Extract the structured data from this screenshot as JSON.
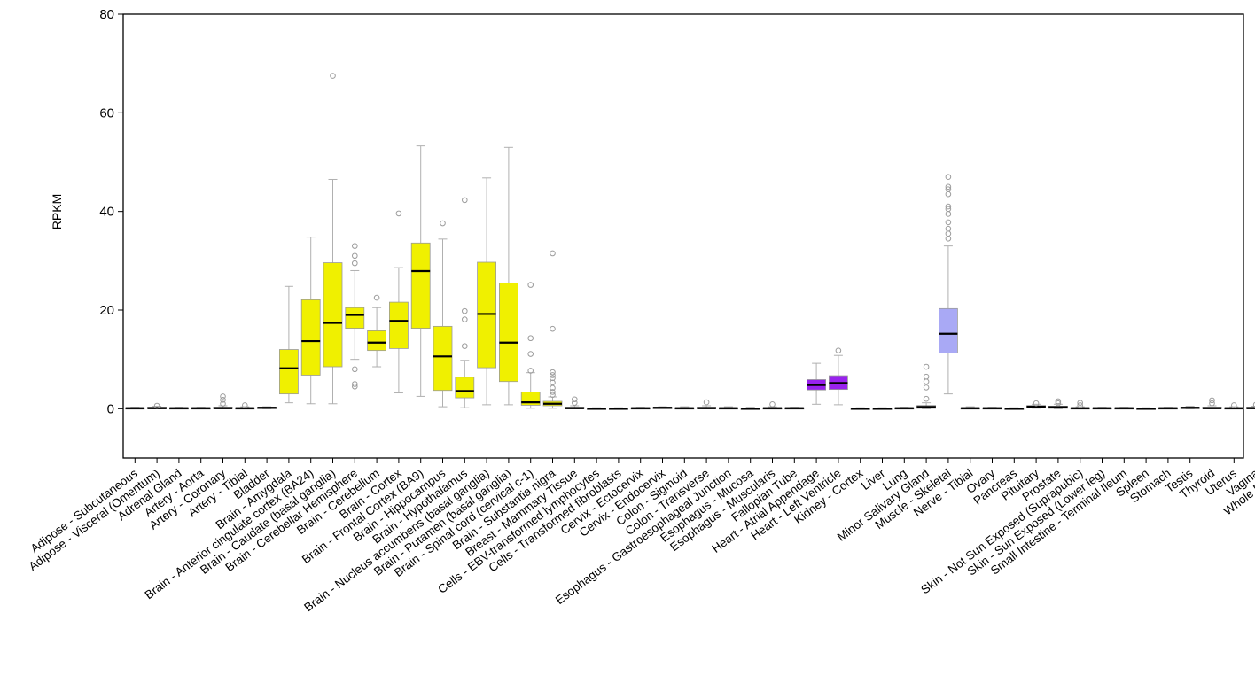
{
  "chart_data": {
    "type": "box",
    "title": "",
    "xlabel": "",
    "ylabel": "RPKM",
    "ylim": [
      -10,
      80
    ],
    "yticks": [
      0,
      20,
      40,
      60,
      80
    ],
    "grid": false,
    "legend": "none",
    "colors": {
      "yellow": "#f0f000",
      "purple": "#9922ee",
      "lavender": "#a9a9f5",
      "gray": "#bdbdbd",
      "black": "#000000",
      "whisker": "#b0b0b0"
    },
    "categories": [
      {
        "label": "Adipose - Subcutaneous",
        "q1": 0,
        "median": 0.1,
        "q3": 0.2,
        "wlow": 0,
        "whigh": 0.3,
        "outliers": [],
        "color": "gray"
      },
      {
        "label": "Adipose - Visceral (Omentum)",
        "q1": 0,
        "median": 0.1,
        "q3": 0.3,
        "wlow": 0,
        "whigh": 0.5,
        "outliers": [
          0.6
        ],
        "color": "gray"
      },
      {
        "label": "Adrenal Gland",
        "q1": 0,
        "median": 0.1,
        "q3": 0.2,
        "wlow": 0,
        "whigh": 0.3,
        "outliers": [],
        "color": "gray"
      },
      {
        "label": "Artery - Aorta",
        "q1": 0,
        "median": 0.1,
        "q3": 0.2,
        "wlow": 0,
        "whigh": 0.3,
        "outliers": [],
        "color": "gray"
      },
      {
        "label": "Artery - Coronary",
        "q1": 0,
        "median": 0.1,
        "q3": 0.3,
        "wlow": 0,
        "whigh": 0.6,
        "outliers": [
          1.0,
          1.8,
          2.5
        ],
        "color": "gray"
      },
      {
        "label": "Artery - Tibial",
        "q1": 0,
        "median": 0.1,
        "q3": 0.2,
        "wlow": 0,
        "whigh": 0.4,
        "outliers": [
          0.7
        ],
        "color": "gray"
      },
      {
        "label": "Bladder",
        "q1": 0.1,
        "median": 0.2,
        "q3": 0.3,
        "wlow": 0,
        "whigh": 0.4,
        "outliers": [],
        "color": "gray"
      },
      {
        "label": "Brain - Amygdala",
        "q1": 3,
        "median": 8.2,
        "q3": 12,
        "wlow": 1.2,
        "whigh": 24.8,
        "outliers": [],
        "color": "yellow"
      },
      {
        "label": "Brain - Anterior cingulate cortex (BA24)",
        "q1": 6.8,
        "median": 13.7,
        "q3": 22.1,
        "wlow": 1.0,
        "whigh": 34.8,
        "outliers": [],
        "color": "yellow"
      },
      {
        "label": "Brain - Caudate (basal ganglia)",
        "q1": 8.5,
        "median": 17.4,
        "q3": 29.6,
        "wlow": 1.0,
        "whigh": 46.5,
        "outliers": [
          67.5
        ],
        "color": "yellow"
      },
      {
        "label": "Brain - Cerebellar Hemisphere",
        "q1": 16.3,
        "median": 19.0,
        "q3": 20.5,
        "wlow": 10,
        "whigh": 28,
        "outliers": [
          33.0,
          31.0,
          29.5,
          8.0,
          5.0,
          4.5
        ],
        "color": "yellow"
      },
      {
        "label": "Brain - Cerebellum",
        "q1": 11.8,
        "median": 13.4,
        "q3": 15.8,
        "wlow": 8.5,
        "whigh": 20.5,
        "outliers": [
          22.5
        ],
        "color": "yellow"
      },
      {
        "label": "Brain - Cortex",
        "q1": 12.2,
        "median": 17.8,
        "q3": 21.6,
        "wlow": 3.2,
        "whigh": 28.6,
        "outliers": [
          39.6
        ],
        "color": "yellow"
      },
      {
        "label": "Brain - Frontal Cortex (BA9)",
        "q1": 16.3,
        "median": 27.9,
        "q3": 33.6,
        "wlow": 2.5,
        "whigh": 53.3,
        "outliers": [],
        "color": "yellow"
      },
      {
        "label": "Brain - Hippocampus",
        "q1": 3.7,
        "median": 10.6,
        "q3": 16.7,
        "wlow": 0.4,
        "whigh": 34.4,
        "outliers": [
          37.6
        ],
        "color": "yellow"
      },
      {
        "label": "Brain - Hypothalamus",
        "q1": 2.2,
        "median": 3.6,
        "q3": 6.4,
        "wlow": 0.2,
        "whigh": 9.8,
        "outliers": [
          42.3,
          19.8,
          18.1,
          12.7
        ],
        "color": "yellow"
      },
      {
        "label": "Brain - Nucleus accumbens (basal ganglia)",
        "q1": 8.3,
        "median": 19.2,
        "q3": 29.7,
        "wlow": 0.8,
        "whigh": 46.8,
        "outliers": [],
        "color": "yellow"
      },
      {
        "label": "Brain - Putamen (basal ganglia)",
        "q1": 5.5,
        "median": 13.4,
        "q3": 25.5,
        "wlow": 0.8,
        "whigh": 53.0,
        "outliers": [],
        "color": "yellow"
      },
      {
        "label": "Brain - Spinal cord (cervical c-1)",
        "q1": 0.7,
        "median": 1.3,
        "q3": 3.4,
        "wlow": 0.1,
        "whigh": 7.3,
        "outliers": [
          25.1,
          14.3,
          11.1,
          7.7
        ],
        "color": "yellow"
      },
      {
        "label": "Brain - Substantia nigra",
        "q1": 0.6,
        "median": 1.0,
        "q3": 1.5,
        "wlow": 0.1,
        "whigh": 2.4,
        "outliers": [
          31.5,
          16.2,
          7.4,
          6.8,
          6.2,
          5.3,
          4.2,
          3.4,
          2.8
        ],
        "color": "yellow"
      },
      {
        "label": "Breast - Mammary Tissue",
        "q1": 0,
        "median": 0.1,
        "q3": 0.3,
        "wlow": 0,
        "whigh": 0.6,
        "outliers": [
          1.2,
          1.9
        ],
        "color": "gray"
      },
      {
        "label": "Cells - EBV-transformed lymphocytes",
        "q1": 0,
        "median": 0.05,
        "q3": 0.1,
        "wlow": 0,
        "whigh": 0.2,
        "outliers": [],
        "color": "gray"
      },
      {
        "label": "Cells - Transformed fibroblasts",
        "q1": 0,
        "median": 0.05,
        "q3": 0.1,
        "wlow": 0,
        "whigh": 0.2,
        "outliers": [],
        "color": "gray"
      },
      {
        "label": "Cervix - Ectocervix",
        "q1": 0,
        "median": 0.1,
        "q3": 0.2,
        "wlow": 0,
        "whigh": 0.3,
        "outliers": [],
        "color": "gray"
      },
      {
        "label": "Cervix - Endocervix",
        "q1": 0.1,
        "median": 0.2,
        "q3": 0.3,
        "wlow": 0.1,
        "whigh": 0.4,
        "outliers": [],
        "color": "gray"
      },
      {
        "label": "Colon - Sigmoid",
        "q1": 0,
        "median": 0.1,
        "q3": 0.2,
        "wlow": 0,
        "whigh": 0.4,
        "outliers": [],
        "color": "gray"
      },
      {
        "label": "Colon - Transverse",
        "q1": 0,
        "median": 0.1,
        "q3": 0.3,
        "wlow": 0,
        "whigh": 0.6,
        "outliers": [
          1.3
        ],
        "color": "gray"
      },
      {
        "label": "Esophagus - Gastroesophageal Junction",
        "q1": 0,
        "median": 0.1,
        "q3": 0.2,
        "wlow": 0,
        "whigh": 0.4,
        "outliers": [],
        "color": "gray"
      },
      {
        "label": "Esophagus - Mucosa",
        "q1": 0,
        "median": 0.05,
        "q3": 0.1,
        "wlow": 0,
        "whigh": 0.3,
        "outliers": [],
        "color": "gray"
      },
      {
        "label": "Esophagus - Muscularis",
        "q1": 0,
        "median": 0.1,
        "q3": 0.2,
        "wlow": 0,
        "whigh": 0.4,
        "outliers": [
          0.9
        ],
        "color": "gray"
      },
      {
        "label": "Fallopian Tube",
        "q1": 0,
        "median": 0.1,
        "q3": 0.2,
        "wlow": 0,
        "whigh": 0.3,
        "outliers": [],
        "color": "gray"
      },
      {
        "label": "Heart - Atrial Appendage",
        "q1": 3.8,
        "median": 4.8,
        "q3": 5.9,
        "wlow": 0.9,
        "whigh": 9.2,
        "outliers": [],
        "color": "purple"
      },
      {
        "label": "Heart - Left Ventricle",
        "q1": 3.9,
        "median": 5.2,
        "q3": 6.7,
        "wlow": 0.8,
        "whigh": 10.8,
        "outliers": [
          11.8
        ],
        "color": "purple"
      },
      {
        "label": "Kidney - Cortex",
        "q1": 0,
        "median": 0.05,
        "q3": 0.1,
        "wlow": 0,
        "whigh": 0.2,
        "outliers": [],
        "color": "gray"
      },
      {
        "label": "Liver",
        "q1": 0,
        "median": 0.05,
        "q3": 0.1,
        "wlow": 0,
        "whigh": 0.2,
        "outliers": [],
        "color": "gray"
      },
      {
        "label": "Lung",
        "q1": 0,
        "median": 0.1,
        "q3": 0.2,
        "wlow": 0,
        "whigh": 0.3,
        "outliers": [],
        "color": "gray"
      },
      {
        "label": "Minor Salivary Gland",
        "q1": 0.1,
        "median": 0.3,
        "q3": 0.6,
        "wlow": 0,
        "whigh": 1.2,
        "outliers": [
          8.5,
          6.5,
          5.5,
          4.3,
          2.0
        ],
        "color": "gray"
      },
      {
        "label": "Muscle - Skeletal",
        "q1": 11.3,
        "median": 15.2,
        "q3": 20.3,
        "wlow": 3.0,
        "whigh": 33.0,
        "outliers": [
          47.0,
          45.0,
          44.5,
          43.5,
          41.0,
          40.5,
          39.5,
          37.8,
          36.5,
          35.5,
          34.5
        ],
        "color": "lavender"
      },
      {
        "label": "Nerve - Tibial",
        "q1": 0,
        "median": 0.1,
        "q3": 0.2,
        "wlow": 0,
        "whigh": 0.4,
        "outliers": [],
        "color": "gray"
      },
      {
        "label": "Ovary",
        "q1": 0,
        "median": 0.1,
        "q3": 0.2,
        "wlow": 0,
        "whigh": 0.3,
        "outliers": [],
        "color": "gray"
      },
      {
        "label": "Pancreas",
        "q1": 0,
        "median": 0.05,
        "q3": 0.1,
        "wlow": 0,
        "whigh": 0.2,
        "outliers": [],
        "color": "gray"
      },
      {
        "label": "Pituitary",
        "q1": 0.2,
        "median": 0.4,
        "q3": 0.6,
        "wlow": 0.1,
        "whigh": 0.9,
        "outliers": [
          1.1
        ],
        "color": "gray"
      },
      {
        "label": "Prostate",
        "q1": 0.1,
        "median": 0.3,
        "q3": 0.5,
        "wlow": 0,
        "whigh": 0.9,
        "outliers": [
          1.1,
          1.5
        ],
        "color": "gray"
      },
      {
        "label": "Skin - Not Sun Exposed (Suprapubic)",
        "q1": 0,
        "median": 0.1,
        "q3": 0.2,
        "wlow": 0,
        "whigh": 0.4,
        "outliers": [
          0.7,
          1.2
        ],
        "color": "gray"
      },
      {
        "label": "Skin - Sun Exposed (Lower leg)",
        "q1": 0,
        "median": 0.1,
        "q3": 0.2,
        "wlow": 0,
        "whigh": 0.3,
        "outliers": [],
        "color": "gray"
      },
      {
        "label": "Small Intestine - Terminal Ileum",
        "q1": 0,
        "median": 0.1,
        "q3": 0.2,
        "wlow": 0,
        "whigh": 0.3,
        "outliers": [],
        "color": "gray"
      },
      {
        "label": "Spleen",
        "q1": 0,
        "median": 0.05,
        "q3": 0.1,
        "wlow": 0,
        "whigh": 0.2,
        "outliers": [],
        "color": "gray"
      },
      {
        "label": "Stomach",
        "q1": 0,
        "median": 0.1,
        "q3": 0.2,
        "wlow": 0,
        "whigh": 0.3,
        "outliers": [],
        "color": "gray"
      },
      {
        "label": "Testis",
        "q1": 0.1,
        "median": 0.2,
        "q3": 0.3,
        "wlow": 0,
        "whigh": 0.5,
        "outliers": [],
        "color": "gray"
      },
      {
        "label": "Thyroid",
        "q1": 0,
        "median": 0.1,
        "q3": 0.3,
        "wlow": 0,
        "whigh": 0.6,
        "outliers": [
          1.1,
          1.7
        ],
        "color": "gray"
      },
      {
        "label": "Uterus",
        "q1": 0,
        "median": 0.1,
        "q3": 0.2,
        "wlow": 0,
        "whigh": 0.4,
        "outliers": [
          0.7
        ],
        "color": "gray"
      },
      {
        "label": "Vagina",
        "q1": 0,
        "median": 0.1,
        "q3": 0.3,
        "wlow": 0,
        "whigh": 0.5,
        "outliers": [
          0.8
        ],
        "color": "gray"
      },
      {
        "label": "Whole Blood",
        "q1": 0,
        "median": 0.1,
        "q3": 0.2,
        "wlow": 0,
        "whigh": 0.3,
        "outliers": [],
        "color": "gray"
      }
    ]
  }
}
